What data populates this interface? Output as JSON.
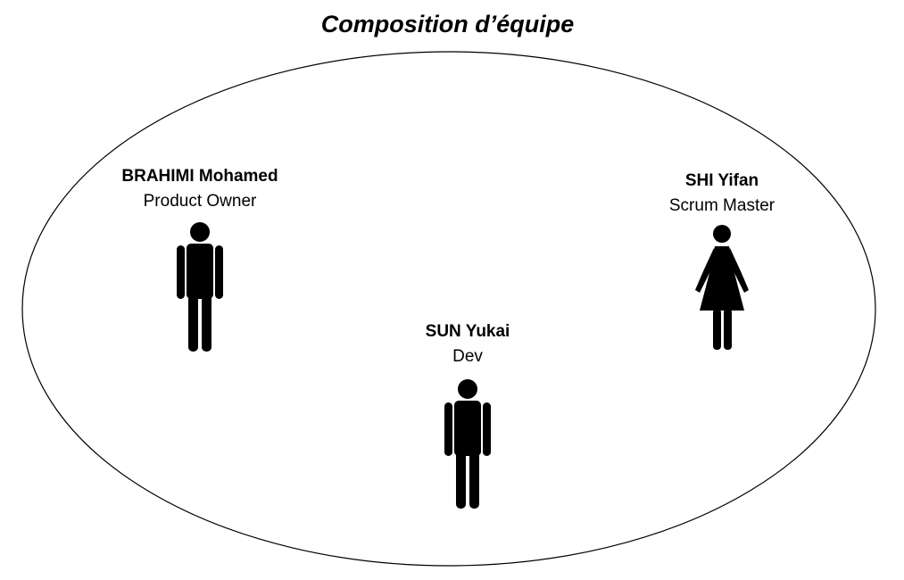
{
  "title": "Composition d’équipe",
  "members": [
    {
      "name": "BRAHIMI Mohamed",
      "role": "Product Owner",
      "figure": "man-icon"
    },
    {
      "name": "SHI Yifan",
      "role": "Scrum Master",
      "figure": "woman-icon"
    },
    {
      "name": "SUN Yukai",
      "role": "Dev",
      "figure": "man-icon"
    }
  ]
}
